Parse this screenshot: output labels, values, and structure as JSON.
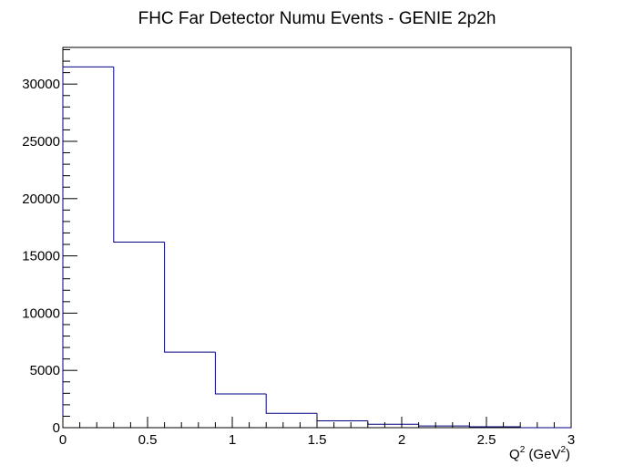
{
  "chart_data": {
    "type": "bar",
    "histogram": true,
    "title": "FHC Far Detector Numu Events - GENIE 2p2h",
    "xlabel": "Q",
    "xlabel_sup1": "2",
    "xlabel_mid": " (GeV",
    "xlabel_sup2": "2",
    "xlabel_end": ")",
    "ylabel": "",
    "bin_edges": [
      0,
      0.3,
      0.6,
      0.9,
      1.2,
      1.5,
      1.8,
      2.1,
      2.4,
      2.7,
      3.0
    ],
    "values": [
      31500,
      16200,
      6600,
      2950,
      1250,
      600,
      300,
      150,
      80,
      0
    ],
    "xlim": [
      0,
      3
    ],
    "ylim": [
      0,
      33200
    ],
    "x_ticks": [
      0,
      0.5,
      1,
      1.5,
      2,
      2.5,
      3
    ],
    "x_tick_labels": [
      "0",
      "0.5",
      "1",
      "1.5",
      "2",
      "2.5",
      "3"
    ],
    "y_ticks": [
      0,
      5000,
      10000,
      15000,
      20000,
      25000,
      30000
    ],
    "y_tick_labels": [
      "0",
      "5000",
      "10000",
      "15000",
      "20000",
      "25000",
      "30000"
    ],
    "line_color": "#000080",
    "grid": false,
    "legend": "none"
  }
}
